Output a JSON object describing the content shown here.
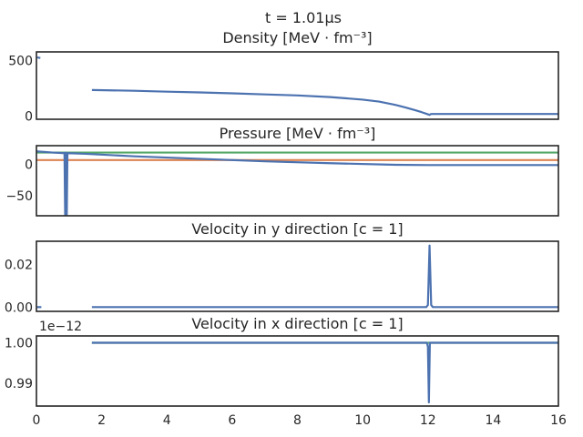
{
  "figure": {
    "suptitle": "t = 1.01μs"
  },
  "colors": {
    "blue": "#4C72B0",
    "green": "#55A868",
    "orange": "#DD8452",
    "frame": "#262626"
  },
  "chart_data": [
    {
      "type": "line",
      "title": "Density [MeV · fm⁻³]",
      "xlim": [
        0,
        16
      ],
      "ylim": [
        -30,
        580
      ],
      "yticks": [
        {
          "v": 0,
          "label": "0"
        },
        {
          "v": 500,
          "label": "500"
        }
      ],
      "xticklabels": false,
      "series": [
        {
          "color": "blue",
          "x": [
            0.02,
            0.12
          ],
          "y": [
            530,
            525
          ]
        },
        {
          "color": "blue",
          "x": [
            1.7,
            3,
            4,
            5,
            6,
            7,
            8,
            9,
            10,
            10.5,
            11,
            11.3,
            11.6,
            11.8,
            11.95,
            12.05,
            12.1,
            16
          ],
          "y": [
            235,
            228,
            220,
            213,
            205,
            195,
            186,
            171,
            148,
            130,
            100,
            78,
            53,
            35,
            20,
            10,
            18,
            18
          ]
        }
      ]
    },
    {
      "type": "line",
      "title": "Pressure [MeV · fm⁻³]",
      "xlim": [
        0,
        16
      ],
      "ylim": [
        -82,
        30
      ],
      "yticks": [
        {
          "v": 0,
          "label": "0"
        },
        {
          "v": -50,
          "label": "−50"
        }
      ],
      "xticklabels": false,
      "series": [
        {
          "color": "green",
          "x": [
            0,
            16
          ],
          "y": [
            19,
            19
          ]
        },
        {
          "color": "orange",
          "x": [
            0,
            16
          ],
          "y": [
            7,
            7
          ]
        },
        {
          "color": "blue",
          "x": [
            0,
            0.5,
            0.86,
            0.88,
            0.9,
            0.93,
            0.95,
            0.98,
            1.5,
            3,
            5,
            7,
            9,
            11,
            12,
            16
          ],
          "y": [
            21,
            19,
            18,
            -80,
            19,
            -80,
            18,
            18,
            17,
            13,
            9,
            5,
            2,
            -0.5,
            -1,
            -1
          ]
        }
      ]
    },
    {
      "type": "line",
      "title": "Velocity in y direction [c = 1]",
      "xlim": [
        0,
        16
      ],
      "ylim": [
        -0.002,
        0.031
      ],
      "yticks": [
        {
          "v": 0.0,
          "label": "0.00"
        },
        {
          "v": 0.02,
          "label": "0.02"
        }
      ],
      "xticklabels": false,
      "series": [
        {
          "color": "blue",
          "x": [
            0.02,
            0.15
          ],
          "y": [
            0,
            0
          ]
        },
        {
          "color": "blue",
          "x": [
            1.7,
            11.95,
            12.0,
            12.05,
            12.1,
            12.15,
            16
          ],
          "y": [
            0,
            0,
            0.001,
            0.029,
            0.001,
            0,
            0
          ]
        }
      ]
    },
    {
      "type": "line",
      "title": "Velocity in x direction [c = 1]",
      "xlim": [
        0,
        16
      ],
      "ylim": [
        0.9843,
        1.0017
      ],
      "offset_text": "1e−12",
      "yticks": [
        {
          "v": 0.99,
          "label": "0.99"
        },
        {
          "v": 1.0,
          "label": "1.00"
        }
      ],
      "xticklabels": true,
      "xticks": [
        0,
        2,
        4,
        6,
        8,
        10,
        12,
        14,
        16
      ],
      "series": [
        {
          "color": "green",
          "x": [
            1.7,
            16
          ],
          "y": [
            1.0,
            1.0
          ]
        },
        {
          "color": "blue",
          "x": [
            1.7,
            11.97,
            12.0,
            12.03,
            12.06,
            16
          ],
          "y": [
            1.0,
            1.0,
            0.999,
            0.9852,
            1.0,
            1.0
          ]
        }
      ]
    }
  ]
}
